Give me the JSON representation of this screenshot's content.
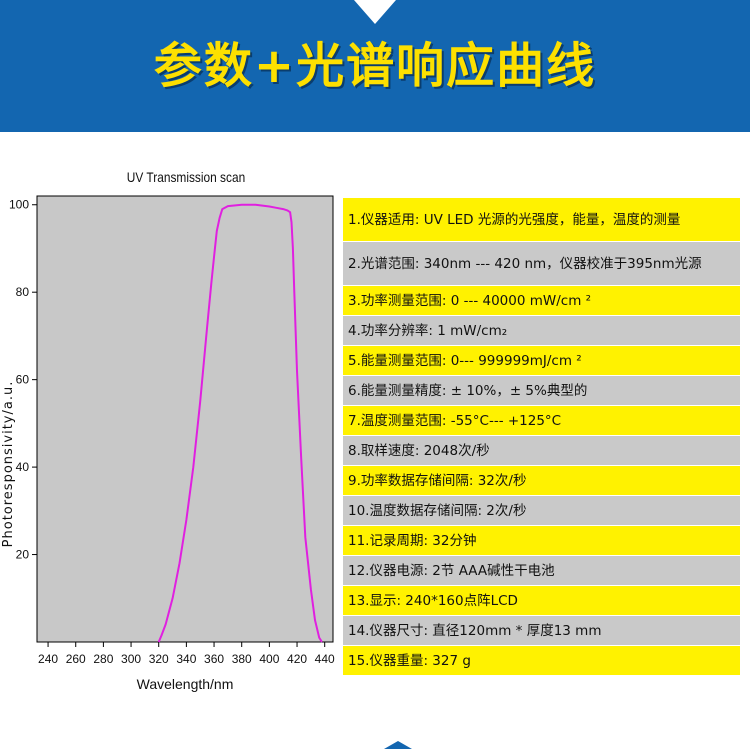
{
  "banner": {
    "title": "参数+光谱响应曲线"
  },
  "chart_data": {
    "type": "line",
    "title": "UV Transmission scan",
    "xlabel": "Wavelength/nm",
    "ylabel": "Photoresponsivity/a.u.",
    "xlim": [
      232,
      446
    ],
    "ylim": [
      0,
      102
    ],
    "xticks": [
      240,
      260,
      280,
      300,
      320,
      340,
      360,
      380,
      400,
      420,
      440
    ],
    "yticks": [
      20,
      40,
      60,
      80,
      100
    ],
    "grid": false,
    "background_color": "#c8c8c8",
    "line_color": "#e020e0",
    "series": [
      {
        "x": [
          320,
          322,
          325,
          330,
          335,
          340,
          345,
          350,
          355,
          358,
          360,
          362,
          364,
          366,
          370,
          380,
          390,
          400,
          405,
          410,
          413,
          415,
          416,
          417,
          418,
          420,
          423,
          426,
          430,
          433,
          436,
          438
        ],
        "y": [
          0,
          1.5,
          4,
          10,
          18,
          28,
          40,
          55,
          72,
          82,
          88,
          94,
          97,
          99,
          99.7,
          100,
          100,
          99.6,
          99.3,
          99,
          98.7,
          98.3,
          96,
          90,
          80,
          62,
          42,
          24,
          12,
          5,
          1,
          0
        ]
      }
    ]
  },
  "specs": [
    {
      "text": "1.仪器适用:  UV LED 光源的光强度，能量，温度的测量"
    },
    {
      "text": "2.光谱范围:  340nm --- 420 nm，仪器校准于395nm光源"
    },
    {
      "text": "3.功率测量范围:  0 --- 40000 mW/cm ²"
    },
    {
      "text": "4.功率分辨率:  1 mW/cm₂"
    },
    {
      "text": "5.能量测量范围:  0--- 999999mJ/cm ²"
    },
    {
      "text": "6.能量测量精度:  ± 10%，± 5%典型的"
    },
    {
      "text": "7.温度测量范围:  -55°C--- +125°C"
    },
    {
      "text": "8.取样速度:  2048次/秒"
    },
    {
      "text": "9.功率数据存储间隔:  32次/秒"
    },
    {
      "text": "10.温度数据存储间隔: 2次/秒"
    },
    {
      "text": "11.记录周期:  32分钟"
    },
    {
      "text": "12.仪器电源:  2节 AAA碱性干电池"
    },
    {
      "text": "13.显示:  240*160点阵LCD"
    },
    {
      "text": "14.仪器尺寸:  直径120mm * 厚度13 mm"
    },
    {
      "text": "15.仪器重量:  327 g"
    }
  ]
}
